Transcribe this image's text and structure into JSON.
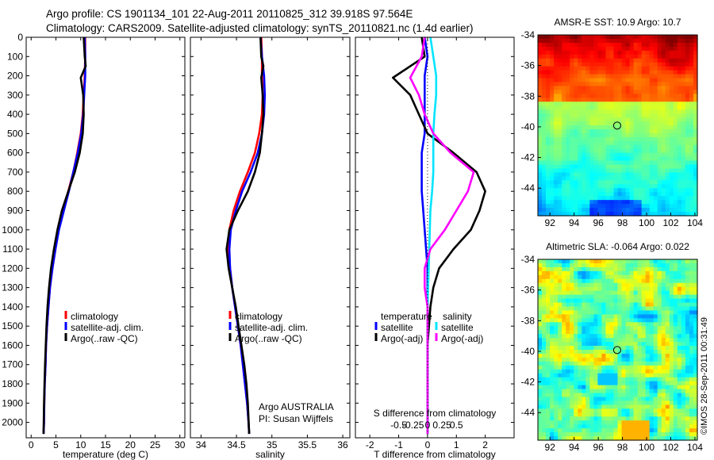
{
  "header": {
    "line1": "Argo profile: CS 1901134_101 22-Aug-2011 20110825_312 39.918S 97.564E",
    "line2": "Climatology: CARS2009. Satellite-adjusted climatology: synTS_20110821.nc (1.4d earlier)"
  },
  "colors": {
    "climatology": "#ff0000",
    "satellite_clim": "#0000ff",
    "argo": "#000000",
    "s_satellite": "#00e5ff",
    "s_argo": "#ff00ff"
  },
  "chart_data": [
    {
      "id": "temperature",
      "type": "line",
      "xlabel": "temperature (deg C)",
      "ylabel": "",
      "xlim": [
        -1,
        31
      ],
      "ylim": [
        2080,
        0
      ],
      "xticks": [
        0,
        5,
        10,
        15,
        20,
        25,
        30
      ],
      "xtick_labels": [
        "0",
        "5",
        "10",
        "15",
        "20",
        "25",
        "30"
      ],
      "yticks": [
        0,
        100,
        200,
        300,
        400,
        500,
        600,
        700,
        800,
        900,
        1000,
        1100,
        1200,
        1300,
        1400,
        1500,
        1600,
        1700,
        1800,
        1900,
        2000
      ],
      "ytick_labels": [
        "0",
        "100",
        "200",
        "300",
        "400",
        "500",
        "600",
        "700",
        "800",
        "900",
        "1000",
        "1100",
        "1200",
        "1300",
        "1400",
        "1500",
        "1600",
        "1700",
        "1800",
        "1900",
        "2000"
      ],
      "legend": [
        "climatology",
        "satellite-adj. clim.",
        "Argo(..raw -QC)"
      ],
      "series": [
        {
          "name": "climatology",
          "color": "#ff0000",
          "x": [
            10.9,
            10.9,
            10.8,
            10.6,
            10.4,
            10.0,
            9.3,
            8.5,
            7.5,
            6.5,
            5.5,
            4.9,
            4.3,
            3.8,
            3.5,
            3.2,
            3.0,
            2.9,
            2.75,
            2.65,
            2.6,
            2.5
          ],
          "y": [
            0,
            100,
            200,
            300,
            400,
            500,
            600,
            700,
            800,
            900,
            1000,
            1100,
            1200,
            1300,
            1400,
            1500,
            1600,
            1700,
            1800,
            1900,
            2000,
            2060
          ]
        },
        {
          "name": "satellite-adj. clim.",
          "color": "#0000ff",
          "x": [
            10.8,
            10.9,
            10.9,
            10.7,
            10.5,
            10.1,
            9.4,
            8.5,
            7.6,
            6.6,
            5.6,
            4.9,
            4.3,
            3.8,
            3.5,
            3.2,
            3.0,
            2.9,
            2.75,
            2.65,
            2.6,
            2.5
          ],
          "y": [
            0,
            100,
            200,
            300,
            400,
            500,
            600,
            700,
            800,
            900,
            1000,
            1100,
            1200,
            1300,
            1400,
            1500,
            1600,
            1700,
            1800,
            1900,
            2000,
            2060
          ]
        },
        {
          "name": "Argo(..raw -QC)",
          "color": "#000000",
          "x": [
            10.6,
            10.8,
            11.0,
            10.0,
            10.5,
            10.6,
            10.4,
            9.8,
            8.8,
            7.5,
            6.2,
            5.3,
            4.6,
            4.0,
            3.6,
            3.3,
            3.1,
            2.95,
            2.8,
            2.7,
            2.6,
            2.5
          ],
          "y": [
            0,
            100,
            150,
            210,
            300,
            400,
            500,
            600,
            700,
            800,
            900,
            1000,
            1100,
            1200,
            1300,
            1400,
            1500,
            1600,
            1700,
            1800,
            1900,
            2060
          ]
        }
      ]
    },
    {
      "id": "salinity",
      "type": "line",
      "xlabel": "salinity",
      "ylabel": "",
      "xlim": [
        33.85,
        36.1
      ],
      "ylim": [
        2080,
        0
      ],
      "xticks": [
        34,
        34.5,
        35,
        35.5,
        36
      ],
      "xtick_labels": [
        "34",
        "34.5",
        "35",
        "35.5",
        "36"
      ],
      "legend": [
        "climatology",
        "satellite-adj. clim.",
        "Argo(..raw -QC)"
      ],
      "annotation": [
        "Argo AUSTRALIA",
        "PI: Susan Wijffels"
      ],
      "series": [
        {
          "name": "climatology",
          "color": "#ff0000",
          "x": [
            34.85,
            34.86,
            34.86,
            34.87,
            34.86,
            34.82,
            34.76,
            34.66,
            34.55,
            34.46,
            34.4,
            34.39,
            34.41,
            34.44,
            34.48,
            34.52,
            34.56,
            34.59,
            34.62,
            34.65,
            34.67,
            34.68
          ],
          "y": [
            0,
            100,
            200,
            300,
            400,
            500,
            600,
            700,
            800,
            900,
            1000,
            1100,
            1200,
            1300,
            1400,
            1500,
            1600,
            1700,
            1800,
            1900,
            2000,
            2060
          ]
        },
        {
          "name": "satellite-adj. clim.",
          "color": "#0000ff",
          "x": [
            34.84,
            34.86,
            34.89,
            34.9,
            34.89,
            34.86,
            34.8,
            34.7,
            34.58,
            34.49,
            34.42,
            34.4,
            34.41,
            34.44,
            34.48,
            34.52,
            34.56,
            34.59,
            34.62,
            34.65,
            34.67,
            34.68
          ],
          "y": [
            0,
            100,
            200,
            300,
            400,
            500,
            600,
            700,
            800,
            900,
            1000,
            1100,
            1200,
            1300,
            1400,
            1500,
            1600,
            1700,
            1800,
            1900,
            2000,
            2060
          ]
        },
        {
          "name": "Argo(..raw -QC)",
          "color": "#000000",
          "x": [
            34.84,
            34.85,
            34.88,
            34.85,
            34.87,
            34.88,
            34.86,
            34.83,
            34.76,
            34.66,
            34.52,
            34.4,
            34.36,
            34.39,
            34.44,
            34.49,
            34.53,
            34.57,
            34.61,
            34.64,
            34.66,
            34.68
          ],
          "y": [
            0,
            100,
            150,
            210,
            300,
            400,
            500,
            600,
            700,
            800,
            900,
            1000,
            1100,
            1200,
            1300,
            1400,
            1500,
            1600,
            1700,
            1800,
            1900,
            2060
          ]
        }
      ]
    },
    {
      "id": "difference",
      "type": "line",
      "xlabel": "T difference from climatology",
      "xlabel_top": "S difference from climatology",
      "xlim": [
        -2.5,
        3
      ],
      "ylim": [
        2080,
        0
      ],
      "xticks": [
        -2,
        -1,
        0,
        1,
        2
      ],
      "xtick_labels": [
        "-2",
        "-1",
        "0",
        "1",
        "2"
      ],
      "s_xticks": [
        -1,
        -0.5,
        0,
        0.5,
        1
      ],
      "s_xtick_labels": [
        "-0.5",
        "-0.25",
        "0",
        "0.25",
        "0.5"
      ],
      "legend_headers": [
        "temperature",
        "salinity"
      ],
      "legend": [
        "satellite",
        "Argo(-adj)",
        "satellite",
        "Argo(-adj)"
      ],
      "series": [
        {
          "name": "temperature satellite",
          "color": "#0000ff",
          "x": [
            -0.1,
            0.0,
            -0.1,
            -0.1,
            -0.1,
            -0.1,
            -0.2,
            -0.2,
            -0.2,
            -0.15,
            -0.1,
            -0.05,
            0.0,
            0.0,
            0.0,
            0.0,
            0.0,
            0.0,
            0.0,
            0.0,
            0.0,
            0.0
          ],
          "y": [
            0,
            100,
            200,
            300,
            400,
            500,
            600,
            700,
            800,
            900,
            1000,
            1100,
            1200,
            1300,
            1400,
            1500,
            1600,
            1700,
            1800,
            1900,
            2000,
            2060
          ]
        },
        {
          "name": "temperature Argo(-adj)",
          "color": "#000000",
          "x": [
            -0.2,
            -0.1,
            -1.2,
            -0.6,
            -0.3,
            0.0,
            0.9,
            1.7,
            2.0,
            1.8,
            1.5,
            0.9,
            0.4,
            0.2,
            0.1,
            0.05,
            0.0,
            0.0,
            0.0,
            0.0,
            0.0,
            0.0
          ],
          "y": [
            0,
            100,
            210,
            300,
            400,
            500,
            600,
            700,
            800,
            900,
            1000,
            1100,
            1200,
            1300,
            1400,
            1500,
            1600,
            1700,
            1800,
            1900,
            2000,
            2060
          ]
        },
        {
          "name": "salinity satellite",
          "color": "#00e5ff",
          "x": [
            0.05,
            0.1,
            0.15,
            0.15,
            0.12,
            0.1,
            0.1,
            0.1,
            0.08,
            0.05,
            0.04,
            0.03,
            0.02,
            0.01,
            0.0,
            0.0,
            0.0,
            0.0,
            0.0,
            0.0,
            0.0,
            0.0
          ],
          "y": [
            0,
            100,
            200,
            300,
            400,
            500,
            600,
            700,
            800,
            900,
            1000,
            1100,
            1200,
            1300,
            1400,
            1500,
            1600,
            1700,
            1800,
            1900,
            2000,
            2060
          ]
        },
        {
          "name": "salinity Argo(-adj)",
          "color": "#ff00ff",
          "x": [
            -0.05,
            -0.1,
            -0.3,
            -0.15,
            -0.05,
            0.1,
            0.4,
            0.8,
            0.7,
            0.5,
            0.3,
            0.05,
            -0.05,
            -0.05,
            0.0,
            0.0,
            0.0,
            0.0,
            0.0,
            0.0,
            0.0,
            0.0
          ],
          "y": [
            0,
            100,
            210,
            300,
            400,
            500,
            600,
            700,
            800,
            900,
            1000,
            1100,
            1200,
            1300,
            1400,
            1500,
            1600,
            1700,
            1800,
            1900,
            2000,
            2060
          ]
        }
      ]
    },
    {
      "id": "sst-map",
      "type": "heatmap",
      "title": "AMSR-E SST: 10.9 Argo: 10.7",
      "xlim": [
        91,
        104.2
      ],
      "ylim": [
        -45.8,
        -34
      ],
      "xticks": [
        92,
        94,
        96,
        98,
        100,
        102,
        104
      ],
      "yticks": [
        -34,
        -36,
        -38,
        -40,
        -42,
        -44
      ],
      "xtick_labels": [
        "92",
        "94",
        "96",
        "98",
        "100",
        "102",
        "104"
      ],
      "ytick_labels": [
        "-34",
        "-36",
        "-38",
        "-40",
        "-42",
        "-44"
      ],
      "marker": {
        "lon": 97.564,
        "lat": -39.918
      }
    },
    {
      "id": "sla-map",
      "type": "heatmap",
      "title": "Altimetric SLA: -0.064 Argo: 0.022",
      "xlim": [
        91,
        104.2
      ],
      "ylim": [
        -45.8,
        -34
      ],
      "xticks": [
        92,
        94,
        96,
        98,
        100,
        102,
        104
      ],
      "yticks": [
        -34,
        -36,
        -38,
        -40,
        -42,
        -44
      ],
      "xtick_labels": [
        "92",
        "94",
        "96",
        "98",
        "100",
        "102",
        "104"
      ],
      "ytick_labels": [
        "-34",
        "-36",
        "-38",
        "-40",
        "-42",
        "-44"
      ],
      "marker": {
        "lon": 97.564,
        "lat": -39.918
      }
    }
  ],
  "credit": "©IMOS 28-Sep-2011 00:31:49"
}
